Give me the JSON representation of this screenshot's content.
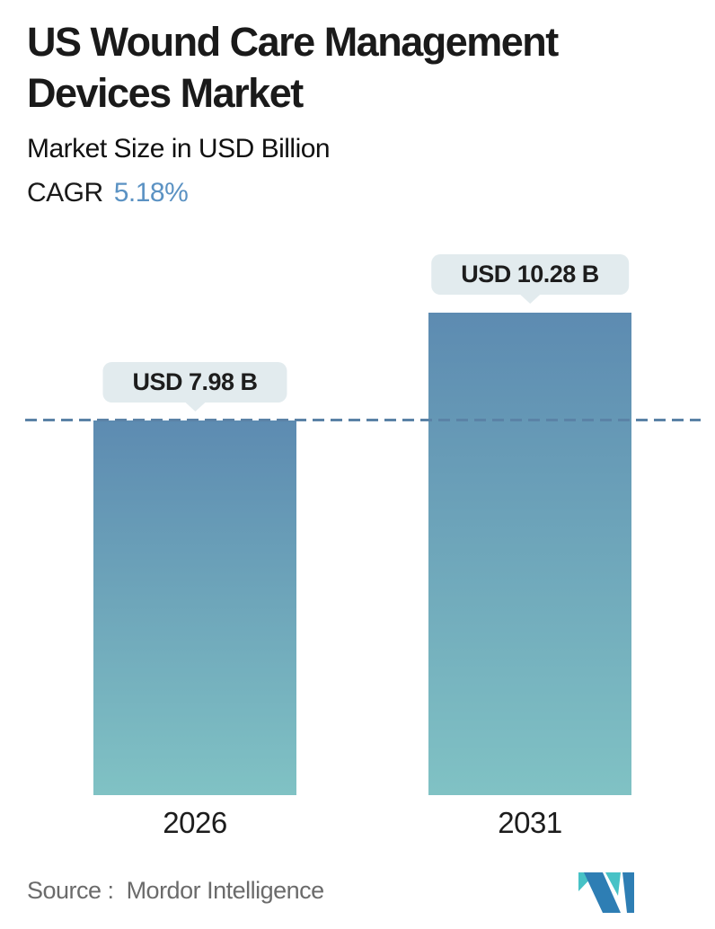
{
  "header": {
    "title": "US Wound Care Management Devices Market",
    "subtitle": "Market Size in USD Billion",
    "cagr_label": "CAGR",
    "cagr_value": "5.18%"
  },
  "chart_data": {
    "type": "bar",
    "title": "US Wound Care Management Devices Market",
    "subtitle": "Market Size in USD Billion",
    "cagr": "5.18%",
    "categories": [
      "2026",
      "2031"
    ],
    "values": [
      7.98,
      10.28
    ],
    "value_labels": [
      "USD 7.98 B",
      "USD 10.28 B"
    ],
    "reference_line_value": 7.98,
    "ylim": [
      0,
      11.5
    ],
    "grid": "off",
    "legend": "none",
    "bar_gradient_top": "#5d8bb1",
    "bar_gradient_bottom": "#80c2c4",
    "reference_line_color": "#5b82a6",
    "tooltip_bg": "#e2ebee"
  },
  "footer": {
    "source_label": "Source :",
    "source_value": "Mordor Intelligence",
    "logo_icon": "mordor-intelligence-m-logo",
    "logo_teal": "#47c2c6",
    "logo_blue": "#2e7eb4"
  },
  "colors": {
    "accent_blue": "#5b92c3",
    "title_text": "#1a1a1a",
    "source_text": "#6b6b6b",
    "background": "#ffffff"
  }
}
